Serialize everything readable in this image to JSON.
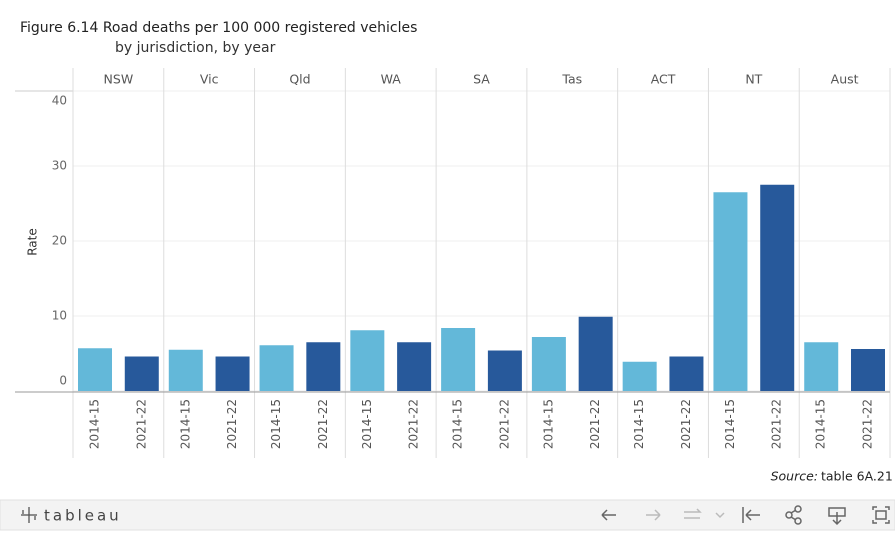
{
  "chart_data": {
    "type": "bar",
    "title": "Figure 6.14 Road deaths per 100 000 registered vehicles",
    "subtitle": "by jurisdiction, by year",
    "y_label": "Rate",
    "categories": [
      "NSW",
      "Vic",
      "Qld",
      "WA",
      "SA",
      "Tas",
      "ACT",
      "NT",
      "Aust"
    ],
    "series": [
      {
        "name": "2014-15",
        "color": "#63b8d9",
        "values": [
          5.7,
          5.5,
          6.1,
          8.1,
          8.4,
          7.2,
          3.9,
          26.5,
          6.5
        ]
      },
      {
        "name": "2021-22",
        "color": "#27599b",
        "values": [
          4.6,
          4.6,
          6.5,
          6.5,
          5.4,
          9.9,
          4.6,
          27.5,
          5.6
        ]
      }
    ],
    "ylim": [
      0,
      40
    ],
    "yticks": [
      0,
      10,
      20,
      30,
      40
    ],
    "grid": true,
    "source_label": "Source:",
    "source": "table 6A.21"
  },
  "footer": {
    "logo": "tableau"
  }
}
